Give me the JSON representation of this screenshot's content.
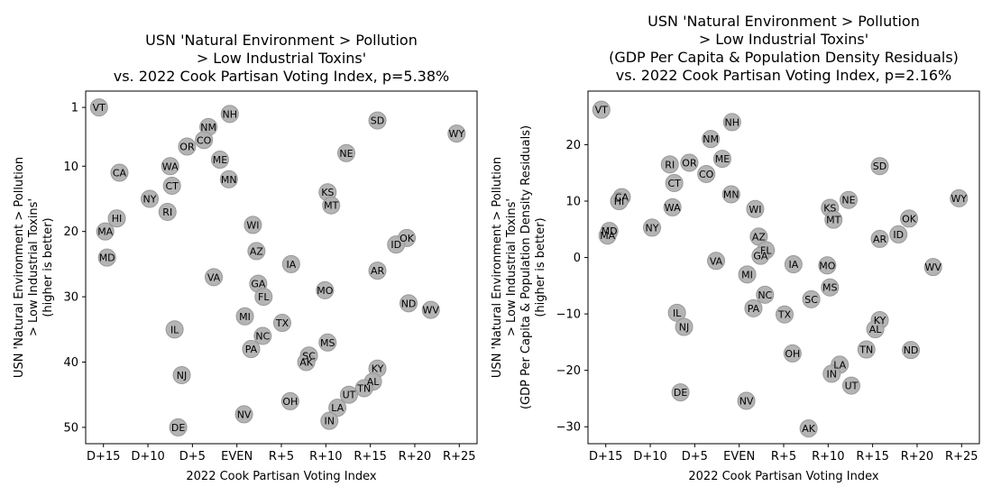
{
  "chart_data": [
    {
      "type": "scatter",
      "title_lines": [
        "USN 'Natural Environment > Pollution",
        "> Low Industrial Toxins'",
        "vs. 2022 Cook Partisan Voting Index, p=5.38%"
      ],
      "xlabel": "2022 Cook Partisan Voting Index",
      "ylabel_lines": [
        "USN 'Natural Environment > Pollution",
        "> Low Industrial Toxins'",
        "(higher is better)"
      ],
      "xlim": [
        -17,
        27
      ],
      "ylim": [
        52.5,
        -1.5
      ],
      "y_inverted": true,
      "x_ticks": [
        {
          "v": -15,
          "label": "D+15"
        },
        {
          "v": -10,
          "label": "D+10"
        },
        {
          "v": -5,
          "label": "D+5"
        },
        {
          "v": 0,
          "label": "EVEN"
        },
        {
          "v": 5,
          "label": "R+5"
        },
        {
          "v": 10,
          "label": "R+10"
        },
        {
          "v": 15,
          "label": "R+15"
        },
        {
          "v": 20,
          "label": "R+20"
        },
        {
          "v": 25,
          "label": "R+25"
        }
      ],
      "y_ticks": [
        {
          "v": 1,
          "label": "1"
        },
        {
          "v": 10,
          "label": "10"
        },
        {
          "v": 20,
          "label": "20"
        },
        {
          "v": 30,
          "label": "30"
        },
        {
          "v": 40,
          "label": "40"
        },
        {
          "v": 50,
          "label": "50"
        }
      ],
      "marker_color": "#b0b0b0",
      "marker_stroke": "#999999",
      "points": [
        {
          "label": "VT",
          "x": -15.5,
          "y": 1
        },
        {
          "label": "NH",
          "x": -0.8,
          "y": 2
        },
        {
          "label": "SD",
          "x": 15.8,
          "y": 3
        },
        {
          "label": "NM",
          "x": -3.2,
          "y": 4
        },
        {
          "label": "WY",
          "x": 24.7,
          "y": 5
        },
        {
          "label": "CO",
          "x": -3.7,
          "y": 6
        },
        {
          "label": "OR",
          "x": -5.6,
          "y": 7
        },
        {
          "label": "NE",
          "x": 12.3,
          "y": 8
        },
        {
          "label": "ME",
          "x": -1.9,
          "y": 9
        },
        {
          "label": "WA",
          "x": -7.5,
          "y": 10
        },
        {
          "label": "CA",
          "x": -13.2,
          "y": 11
        },
        {
          "label": "MN",
          "x": -0.9,
          "y": 12
        },
        {
          "label": "CT",
          "x": -7.3,
          "y": 13
        },
        {
          "label": "KS",
          "x": 10.2,
          "y": 14
        },
        {
          "label": "NY",
          "x": -9.8,
          "y": 15
        },
        {
          "label": "MT",
          "x": 10.6,
          "y": 16
        },
        {
          "label": "RI",
          "x": -7.8,
          "y": 17
        },
        {
          "label": "HI",
          "x": -13.5,
          "y": 18
        },
        {
          "label": "WI",
          "x": 1.8,
          "y": 19
        },
        {
          "label": "MA",
          "x": -14.8,
          "y": 20
        },
        {
          "label": "OK",
          "x": 19.1,
          "y": 21
        },
        {
          "label": "ID",
          "x": 17.9,
          "y": 22
        },
        {
          "label": "AZ",
          "x": 2.2,
          "y": 23
        },
        {
          "label": "MD",
          "x": -14.6,
          "y": 24
        },
        {
          "label": "IA",
          "x": 6.1,
          "y": 25
        },
        {
          "label": "AR",
          "x": 15.8,
          "y": 26
        },
        {
          "label": "VA",
          "x": -2.6,
          "y": 27
        },
        {
          "label": "GA",
          "x": 2.4,
          "y": 28
        },
        {
          "label": "MO",
          "x": 9.9,
          "y": 29
        },
        {
          "label": "FL",
          "x": 3.0,
          "y": 30
        },
        {
          "label": "ND",
          "x": 19.3,
          "y": 31
        },
        {
          "label": "WV",
          "x": 21.8,
          "y": 32
        },
        {
          "label": "MI",
          "x": 0.9,
          "y": 33
        },
        {
          "label": "TX",
          "x": 5.1,
          "y": 34
        },
        {
          "label": "IL",
          "x": -7.0,
          "y": 35
        },
        {
          "label": "NC",
          "x": 2.9,
          "y": 36
        },
        {
          "label": "MS",
          "x": 10.2,
          "y": 37
        },
        {
          "label": "PA",
          "x": 1.6,
          "y": 38
        },
        {
          "label": "SC",
          "x": 8.1,
          "y": 39
        },
        {
          "label": "AK",
          "x": 7.8,
          "y": 40
        },
        {
          "label": "KY",
          "x": 15.8,
          "y": 41
        },
        {
          "label": "NJ",
          "x": -6.2,
          "y": 42
        },
        {
          "label": "AL",
          "x": 15.3,
          "y": 43
        },
        {
          "label": "TN",
          "x": 14.3,
          "y": 44
        },
        {
          "label": "UT",
          "x": 12.6,
          "y": 45
        },
        {
          "label": "OH",
          "x": 6.0,
          "y": 46
        },
        {
          "label": "LA",
          "x": 11.3,
          "y": 47
        },
        {
          "label": "NV",
          "x": 0.8,
          "y": 48
        },
        {
          "label": "IN",
          "x": 10.4,
          "y": 49
        },
        {
          "label": "DE",
          "x": -6.6,
          "y": 50
        }
      ]
    },
    {
      "type": "scatter",
      "title_lines": [
        "USN 'Natural Environment > Pollution",
        "> Low Industrial Toxins'",
        "(GDP Per Capita & Population Density Residuals)",
        "vs. 2022 Cook Partisan Voting Index, p=2.16%"
      ],
      "xlabel": "2022 Cook Partisan Voting Index",
      "ylabel_lines": [
        "USN 'Natural Environment > Pollution",
        "> Low Industrial Toxins'",
        "(GDP Per Capita & Population Density Residuals)",
        "(higher is better)"
      ],
      "xlim": [
        -17,
        27
      ],
      "ylim": [
        -33,
        29.5
      ],
      "y_inverted": false,
      "x_ticks": [
        {
          "v": -15,
          "label": "D+15"
        },
        {
          "v": -10,
          "label": "D+10"
        },
        {
          "v": -5,
          "label": "D+5"
        },
        {
          "v": 0,
          "label": "EVEN"
        },
        {
          "v": 5,
          "label": "R+5"
        },
        {
          "v": 10,
          "label": "R+10"
        },
        {
          "v": 15,
          "label": "R+15"
        },
        {
          "v": 20,
          "label": "R+20"
        },
        {
          "v": 25,
          "label": "R+25"
        }
      ],
      "y_ticks": [
        {
          "v": 20,
          "label": "20"
        },
        {
          "v": 10,
          "label": "10"
        },
        {
          "v": 0,
          "label": "0"
        },
        {
          "v": -10,
          "label": "−10"
        },
        {
          "v": -20,
          "label": "−20"
        },
        {
          "v": -30,
          "label": "−30"
        }
      ],
      "marker_color": "#b0b0b0",
      "marker_stroke": "#999999",
      "points": [
        {
          "label": "VT",
          "x": -15.5,
          "y": 26.2
        },
        {
          "label": "NH",
          "x": -0.8,
          "y": 24.0
        },
        {
          "label": "NM",
          "x": -3.2,
          "y": 21.0
        },
        {
          "label": "ME",
          "x": -1.9,
          "y": 17.5
        },
        {
          "label": "OR",
          "x": -5.6,
          "y": 16.8
        },
        {
          "label": "RI",
          "x": -7.8,
          "y": 16.5
        },
        {
          "label": "SD",
          "x": 15.8,
          "y": 16.2
        },
        {
          "label": "CO",
          "x": -3.7,
          "y": 14.8
        },
        {
          "label": "CT",
          "x": -7.3,
          "y": 13.2
        },
        {
          "label": "MN",
          "x": -0.9,
          "y": 11.2
        },
        {
          "label": "CA",
          "x": -13.2,
          "y": 10.7
        },
        {
          "label": "WY",
          "x": 24.7,
          "y": 10.5
        },
        {
          "label": "NE",
          "x": 12.3,
          "y": 10.2
        },
        {
          "label": "HI",
          "x": -13.5,
          "y": 10.0
        },
        {
          "label": "WA",
          "x": -7.5,
          "y": 8.9
        },
        {
          "label": "KS",
          "x": 10.2,
          "y": 8.8
        },
        {
          "label": "WI",
          "x": 1.8,
          "y": 8.6
        },
        {
          "label": "OK",
          "x": 19.1,
          "y": 6.9
        },
        {
          "label": "MT",
          "x": 10.6,
          "y": 6.7
        },
        {
          "label": "NY",
          "x": -9.8,
          "y": 5.3
        },
        {
          "label": "MD",
          "x": -14.6,
          "y": 4.7
        },
        {
          "label": "ID",
          "x": 17.9,
          "y": 4.1
        },
        {
          "label": "MA",
          "x": -14.8,
          "y": 3.9
        },
        {
          "label": "AZ",
          "x": 2.2,
          "y": 3.7
        },
        {
          "label": "AR",
          "x": 15.8,
          "y": 3.3
        },
        {
          "label": "FL",
          "x": 3.0,
          "y": 1.3
        },
        {
          "label": "GA",
          "x": 2.4,
          "y": 0.3
        },
        {
          "label": "VA",
          "x": -2.6,
          "y": -0.6
        },
        {
          "label": "IA",
          "x": 6.1,
          "y": -1.2
        },
        {
          "label": "MO",
          "x": 9.9,
          "y": -1.4
        },
        {
          "label": "WV",
          "x": 21.8,
          "y": -1.7
        },
        {
          "label": "MI",
          "x": 0.9,
          "y": -3.0
        },
        {
          "label": "MS",
          "x": 10.2,
          "y": -5.3
        },
        {
          "label": "NC",
          "x": 2.9,
          "y": -6.6
        },
        {
          "label": "SC",
          "x": 8.1,
          "y": -7.4
        },
        {
          "label": "PA",
          "x": 1.6,
          "y": -9.0
        },
        {
          "label": "IL",
          "x": -7.0,
          "y": -9.8
        },
        {
          "label": "TX",
          "x": 5.1,
          "y": -10.1
        },
        {
          "label": "KY",
          "x": 15.8,
          "y": -11.1
        },
        {
          "label": "NJ",
          "x": -6.2,
          "y": -12.3
        },
        {
          "label": "AL",
          "x": 15.3,
          "y": -12.7
        },
        {
          "label": "TN",
          "x": 14.3,
          "y": -16.3
        },
        {
          "label": "ND",
          "x": 19.3,
          "y": -16.4
        },
        {
          "label": "OH",
          "x": 6.0,
          "y": -17.0
        },
        {
          "label": "LA",
          "x": 11.3,
          "y": -19.0
        },
        {
          "label": "IN",
          "x": 10.4,
          "y": -20.6
        },
        {
          "label": "UT",
          "x": 12.6,
          "y": -22.7
        },
        {
          "label": "DE",
          "x": -6.6,
          "y": -23.9
        },
        {
          "label": "NV",
          "x": 0.8,
          "y": -25.4
        },
        {
          "label": "AK",
          "x": 7.8,
          "y": -30.3
        }
      ]
    }
  ]
}
